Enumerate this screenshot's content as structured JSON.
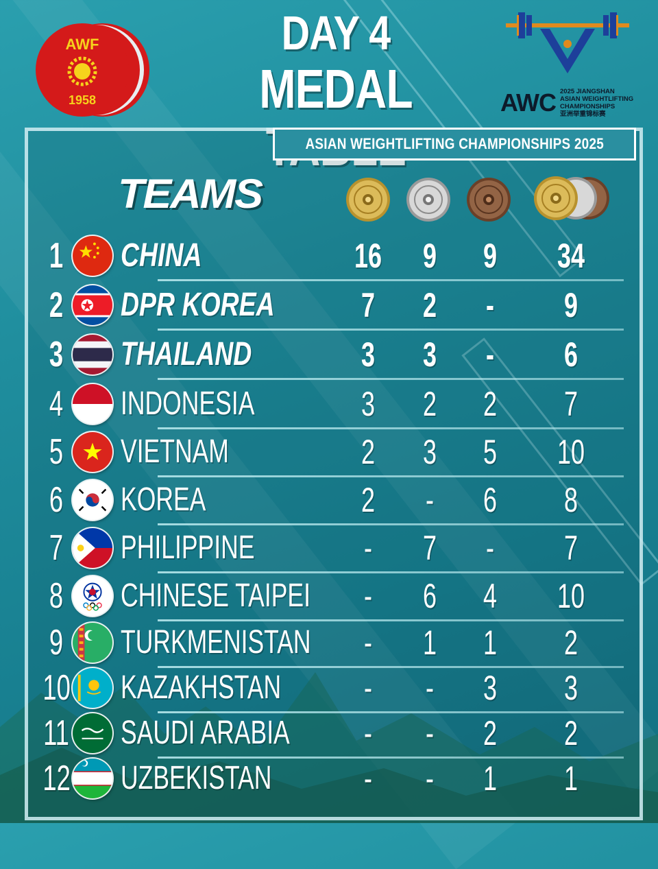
{
  "header": {
    "title_line1": "DAY 4",
    "title_line2": "MEDAL TABLE",
    "subtitle": "ASIAN WEIGHTLIFTING CHAMPIONSHIPS 2025",
    "teams_label": "TEAMS"
  },
  "awf_logo": {
    "text": "AWF",
    "year": "1958"
  },
  "awc_logo": {
    "abbr": "AWC",
    "line1": "2025 JIANGSHAN",
    "line2": "ASIAN WEIGHTLIFTING",
    "line3": "CHAMPIONSHIPS",
    "line4": "亚洲举重锦标赛"
  },
  "columns": [
    {
      "icon": "gold-plate-icon",
      "meaning": "gold"
    },
    {
      "icon": "silver-plate-icon",
      "meaning": "silver"
    },
    {
      "icon": "bronze-plate-icon",
      "meaning": "bronze"
    },
    {
      "icon": "stacked-plates-icon",
      "meaning": "total"
    }
  ],
  "colors": {
    "gold": "#c9a640",
    "silver": "#c8c8c8",
    "bronze": "#8a5a3a",
    "panel_border": "#d2f0f5",
    "awf_red": "#d41a1a"
  },
  "rows": [
    {
      "rank": "1",
      "team": "CHINA",
      "flag": "china-flag-icon",
      "gold": "16",
      "silver": "9",
      "bronze": "9",
      "total": "34"
    },
    {
      "rank": "2",
      "team": "DPR KOREA",
      "flag": "dpr-korea-flag-icon",
      "gold": "7",
      "silver": "2",
      "bronze": "-",
      "total": "9"
    },
    {
      "rank": "3",
      "team": "THAILAND",
      "flag": "thailand-flag-icon",
      "gold": "3",
      "silver": "3",
      "bronze": "-",
      "total": "6"
    },
    {
      "rank": "4",
      "team": "INDONESIA",
      "flag": "indonesia-flag-icon",
      "gold": "3",
      "silver": "2",
      "bronze": "2",
      "total": "7"
    },
    {
      "rank": "5",
      "team": "VIETNAM",
      "flag": "vietnam-flag-icon",
      "gold": "2",
      "silver": "3",
      "bronze": "5",
      "total": "10"
    },
    {
      "rank": "6",
      "team": "KOREA",
      "flag": "korea-flag-icon",
      "gold": "2",
      "silver": "-",
      "bronze": "6",
      "total": "8"
    },
    {
      "rank": "7",
      "team": "PHILIPPINE",
      "flag": "philippines-flag-icon",
      "gold": "-",
      "silver": "7",
      "bronze": "-",
      "total": "7"
    },
    {
      "rank": "8",
      "team": "CHINESE TAIPEI",
      "flag": "chinese-taipei-flag-icon",
      "gold": "-",
      "silver": "6",
      "bronze": "4",
      "total": "10"
    },
    {
      "rank": "9",
      "team": "TURKMENISTAN",
      "flag": "turkmenistan-flag-icon",
      "gold": "-",
      "silver": "1",
      "bronze": "1",
      "total": "2"
    },
    {
      "rank": "10",
      "team": "KAZAKHSTAN",
      "flag": "kazakhstan-flag-icon",
      "gold": "-",
      "silver": "-",
      "bronze": "3",
      "total": "3"
    },
    {
      "rank": "11",
      "team": "SAUDI ARABIA",
      "flag": "saudi-arabia-flag-icon",
      "gold": "-",
      "silver": "-",
      "bronze": "2",
      "total": "2"
    },
    {
      "rank": "12",
      "team": "UZBEKISTAN",
      "flag": "uzbekistan-flag-icon",
      "gold": "-",
      "silver": "-",
      "bronze": "1",
      "total": "1"
    }
  ]
}
